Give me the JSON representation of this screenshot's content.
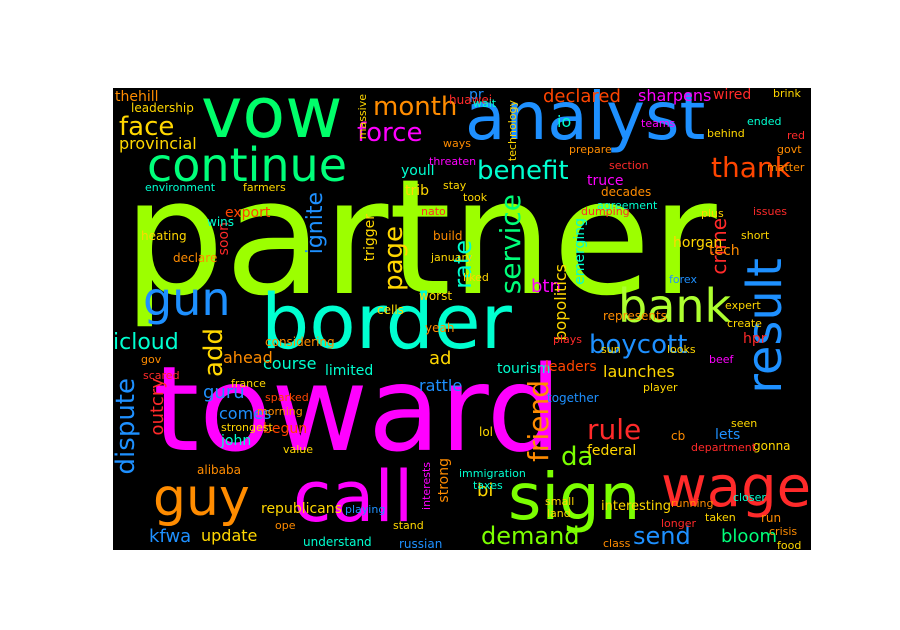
{
  "background_color": "#000000",
  "words": [
    {
      "id": "partner",
      "text": "partner",
      "color": "#9cff00"
    },
    {
      "id": "toward",
      "text": "toward",
      "color": "#ff00ff"
    },
    {
      "id": "border",
      "text": "border",
      "color": "#00ffd0"
    },
    {
      "id": "vow",
      "text": "vow",
      "color": "#00ff6a"
    },
    {
      "id": "analyst",
      "text": "analyst",
      "color": "#1e90ff"
    },
    {
      "id": "continue",
      "text": "continue",
      "color": "#00ff7a"
    },
    {
      "id": "call",
      "text": "call",
      "color": "#ff00ff"
    },
    {
      "id": "sign",
      "text": "sign",
      "color": "#7cff00"
    },
    {
      "id": "wage",
      "text": "wage",
      "color": "#ff2a2a"
    },
    {
      "id": "guy",
      "text": "guy",
      "color": "#ff8c00"
    },
    {
      "id": "bank",
      "text": "bank",
      "color": "#adff2f"
    },
    {
      "id": "result",
      "text": "result",
      "color": "#1e90ff"
    },
    {
      "id": "gun",
      "text": "gun",
      "color": "#1e90ff"
    },
    {
      "id": "month",
      "text": "month",
      "color": "#ff8c00"
    },
    {
      "id": "force",
      "text": "force",
      "color": "#ff00ff"
    },
    {
      "id": "face",
      "text": "face",
      "color": "#ffd700"
    },
    {
      "id": "thank",
      "text": "thank",
      "color": "#ff4500"
    },
    {
      "id": "benefit",
      "text": "benefit",
      "color": "#00ffd0"
    },
    {
      "id": "boycott",
      "text": "boycott",
      "color": "#1e90ff"
    },
    {
      "id": "service",
      "text": "service",
      "color": "#00ff7a"
    },
    {
      "id": "rule",
      "text": "rule",
      "color": "#ff2a2a"
    },
    {
      "id": "friend",
      "text": "friend",
      "color": "#ff8c00"
    },
    {
      "id": "demand",
      "text": "demand",
      "color": "#7cff00"
    },
    {
      "id": "send",
      "text": "send",
      "color": "#1e90ff"
    },
    {
      "id": "dispute",
      "text": "dispute",
      "color": "#1e90ff"
    },
    {
      "id": "add",
      "text": "add",
      "color": "#ffd700"
    },
    {
      "id": "page",
      "text": "page",
      "color": "#ffd700"
    },
    {
      "id": "rate",
      "text": "rate",
      "color": "#00ffd0"
    },
    {
      "id": "declared",
      "text": "declared",
      "color": "#ff4500"
    },
    {
      "id": "sharpens",
      "text": "sharpens",
      "color": "#ff00ff"
    },
    {
      "id": "icloud",
      "text": "icloud",
      "color": "#00ffd0"
    },
    {
      "id": "crime",
      "text": "crime",
      "color": "#ff2a2a"
    },
    {
      "id": "ignite",
      "text": "ignite",
      "color": "#1e90ff"
    },
    {
      "id": "bloom",
      "text": "bloom",
      "color": "#00ff7a"
    },
    {
      "id": "update",
      "text": "update",
      "color": "#ffd700"
    },
    {
      "id": "kfwa",
      "text": "kfwa",
      "color": "#1e90ff"
    },
    {
      "id": "da",
      "text": "da",
      "color": "#7cff00"
    },
    {
      "id": "course",
      "text": "course",
      "color": "#00ffd0"
    },
    {
      "id": "limited",
      "text": "limited",
      "color": "#00ffd0"
    },
    {
      "id": "btn",
      "text": "btn",
      "color": "#ff00ff"
    },
    {
      "id": "outcry",
      "text": "outcry",
      "color": "#ff2a2a"
    },
    {
      "id": "republicans",
      "text": "republicans",
      "color": "#ffd700"
    },
    {
      "id": "horgan",
      "text": "horgan",
      "color": "#ffd700"
    },
    {
      "id": "tourism",
      "text": "tourism",
      "color": "#00ffd0"
    },
    {
      "id": "launches",
      "text": "launches",
      "color": "#ffd700"
    },
    {
      "id": "federal",
      "text": "federal",
      "color": "#ffd700"
    },
    {
      "id": "rattle",
      "text": "rattle",
      "color": "#1e90ff"
    },
    {
      "id": "ad",
      "text": "ad",
      "color": "#ffd700"
    },
    {
      "id": "leaders",
      "text": "leaders",
      "color": "#ff4500"
    },
    {
      "id": "interesting",
      "text": "interesting",
      "color": "#ffd700"
    },
    {
      "id": "john",
      "text": "john",
      "color": "#00ffd0"
    },
    {
      "id": "guru",
      "text": "guru",
      "color": "#1e90ff"
    },
    {
      "id": "comes",
      "text": "comes",
      "color": "#1e90ff"
    },
    {
      "id": "begun",
      "text": "begun",
      "color": "#ff4500"
    },
    {
      "id": "provincial",
      "text": "provincial",
      "color": "#ffd700"
    },
    {
      "id": "trib",
      "text": "trib",
      "color": "#ffd700"
    },
    {
      "id": "youll",
      "text": "youll",
      "color": "#00ffd0"
    },
    {
      "id": "export",
      "text": "export",
      "color": "#ff4500"
    },
    {
      "id": "emerging",
      "text": "emerging",
      "color": "#00ffd0"
    },
    {
      "id": "represents",
      "text": "represents",
      "color": "#ff8c00"
    },
    {
      "id": "bopolitics",
      "text": "bopolitics",
      "color": "#ffd700"
    },
    {
      "id": "bi",
      "text": "bi",
      "color": "#ffd700"
    },
    {
      "id": "strong",
      "text": "strong",
      "color": "#ff8c00"
    },
    {
      "id": "together",
      "text": "together",
      "color": "#1e90ff"
    },
    {
      "id": "trigger",
      "text": "trigger",
      "color": "#ffd700"
    },
    {
      "id": "cells",
      "text": "cells",
      "color": "#ffd700"
    },
    {
      "id": "yeah",
      "text": "yeah",
      "color": "#ff8c00"
    },
    {
      "id": "lol",
      "text": "lol",
      "color": "#ffd700"
    },
    {
      "id": "considering",
      "text": "considering",
      "color": "#ff8c00"
    },
    {
      "id": "ahead",
      "text": "ahead",
      "color": "#ff8c00"
    },
    {
      "id": "thehill",
      "text": "thehill",
      "color": "#ff8c00"
    },
    {
      "id": "leadership",
      "text": "leadership",
      "color": "#ffd700"
    },
    {
      "id": "pr",
      "text": "pr",
      "color": "#1e90ff"
    },
    {
      "id": "io",
      "text": "io",
      "color": "#00ffd0"
    },
    {
      "id": "wired",
      "text": "wired",
      "color": "#ff2a2a"
    },
    {
      "id": "truce",
      "text": "truce",
      "color": "#ff00ff"
    },
    {
      "id": "understand",
      "text": "understand",
      "color": "#00ffd0"
    },
    {
      "id": "ope",
      "text": "ope",
      "color": "#ff8c00"
    },
    {
      "id": "gov",
      "text": "gov",
      "color": "#ff8c00"
    },
    {
      "id": "sun",
      "text": "sun",
      "color": "#ffd700"
    },
    {
      "id": "hpr",
      "text": "hpr",
      "color": "#ff2a2a"
    },
    {
      "id": "lets",
      "text": "lets",
      "color": "#1e90ff"
    },
    {
      "id": "gonna",
      "text": "gonna",
      "color": "#ffd700"
    },
    {
      "id": "soon",
      "text": "soon",
      "color": "#ff2a2a"
    },
    {
      "id": "tech",
      "text": "tech",
      "color": "#ff8c00"
    },
    {
      "id": "wins",
      "text": "wins",
      "color": "#00ffd0"
    },
    {
      "id": "looks",
      "text": "looks",
      "color": "#ffd700"
    },
    {
      "id": "cbc",
      "text": "cb",
      "color": "#ff8c00"
    },
    {
      "id": "immigration",
      "text": "immigration",
      "color": "#00ffd0"
    },
    {
      "id": "plays",
      "text": "plays",
      "color": "#ff2a2a"
    },
    {
      "id": "forex",
      "text": "forex",
      "color": "#1e90ff"
    },
    {
      "id": "running",
      "text": "running",
      "color": "#ff8c00"
    },
    {
      "id": "create",
      "text": "create",
      "color": "#ffd700"
    },
    {
      "id": "expert",
      "text": "expert",
      "color": "#ffd700"
    },
    {
      "id": "decades",
      "text": "decades",
      "color": "#ff8c00"
    },
    {
      "id": "worst",
      "text": "worst",
      "color": "#ffd700"
    },
    {
      "id": "technology",
      "text": "technology",
      "color": "#ffd700"
    },
    {
      "id": "huawei",
      "text": "huawei",
      "color": "#ff2a2a"
    },
    {
      "id": "massive",
      "text": "massive",
      "color": "#ffd700"
    },
    {
      "id": "threaten",
      "text": "threaten",
      "color": "#ff00ff"
    },
    {
      "id": "environment",
      "text": "environment",
      "color": "#00ffd0"
    },
    {
      "id": "farmers",
      "text": "farmers",
      "color": "#ffd700"
    },
    {
      "id": "heating",
      "text": "heating",
      "color": "#ffd700"
    },
    {
      "id": "declare",
      "text": "declare",
      "color": "#ff8c00"
    },
    {
      "id": "morning",
      "text": "morning",
      "color": "#ff8c00"
    },
    {
      "id": "strongest",
      "text": "strongest",
      "color": "#ffd700"
    },
    {
      "id": "value",
      "text": "value",
      "color": "#ffd700"
    },
    {
      "id": "alibaba",
      "text": "alibaba",
      "color": "#ff8c00"
    },
    {
      "id": "taxes",
      "text": "taxes",
      "color": "#00ffd0"
    },
    {
      "id": "small",
      "text": "small",
      "color": "#ffd700"
    },
    {
      "id": "playing",
      "text": "playing",
      "color": "#1e90ff"
    },
    {
      "id": "stand",
      "text": "stand",
      "color": "#ffd700"
    },
    {
      "id": "russian",
      "text": "russian",
      "color": "#1e90ff"
    },
    {
      "id": "class",
      "text": "class",
      "color": "#ff8c00"
    },
    {
      "id": "interests",
      "text": "interests",
      "color": "#ff00ff"
    },
    {
      "id": "land",
      "text": "land",
      "color": "#ffd700"
    },
    {
      "id": "france",
      "text": "france",
      "color": "#ffd700"
    },
    {
      "id": "scared",
      "text": "scared",
      "color": "#ff2a2a"
    },
    {
      "id": "sparked",
      "text": "sparked",
      "color": "#ff4500"
    },
    {
      "id": "player",
      "text": "player",
      "color": "#ffd700"
    },
    {
      "id": "agreement",
      "text": "agreement",
      "color": "#00ffd0"
    },
    {
      "id": "prepare",
      "text": "prepare",
      "color": "#ff8c00"
    },
    {
      "id": "section",
      "text": "section",
      "color": "#ff2a2a"
    },
    {
      "id": "built",
      "text": "build",
      "color": "#ff8c00"
    },
    {
      "id": "january",
      "text": "january",
      "color": "#ffd700"
    },
    {
      "id": "liked",
      "text": "liked",
      "color": "#ffd700"
    },
    {
      "id": "crisis",
      "text": "crisis",
      "color": "#ff8c00"
    },
    {
      "id": "food",
      "text": "food",
      "color": "#ffd700"
    },
    {
      "id": "run",
      "text": "run",
      "color": "#ff8c00"
    },
    {
      "id": "taken",
      "text": "taken",
      "color": "#ffd700"
    },
    {
      "id": "longer",
      "text": "longer",
      "color": "#ff2a2a"
    },
    {
      "id": "closer",
      "text": "closer",
      "color": "#00ffd0"
    },
    {
      "id": "beef",
      "text": "beef",
      "color": "#ff00ff"
    },
    {
      "id": "issues",
      "text": "issues",
      "color": "#ff2a2a"
    },
    {
      "id": "matter",
      "text": "matter",
      "color": "#ff8c00"
    },
    {
      "id": "red",
      "text": "red",
      "color": "#ff2a2a"
    },
    {
      "id": "ended",
      "text": "ended",
      "color": "#00ffd0"
    },
    {
      "id": "behind",
      "text": "behind",
      "color": "#ffd700"
    },
    {
      "id": "teams",
      "text": "teams",
      "color": "#ff00ff"
    },
    {
      "id": "wait",
      "text": "wait",
      "color": "#00ffd0"
    },
    {
      "id": "nato",
      "text": "nato",
      "color": "#ff2a2a"
    },
    {
      "id": "stay",
      "text": "stay",
      "color": "#ffd700"
    },
    {
      "id": "took",
      "text": "took",
      "color": "#ffd700"
    },
    {
      "id": "department",
      "text": "department",
      "color": "#ff2a2a"
    },
    {
      "id": "seen",
      "text": "seen",
      "color": "#ffd700"
    },
    {
      "id": "short",
      "text": "short",
      "color": "#ffd700"
    },
    {
      "id": "plus",
      "text": "plus",
      "color": "#ffd700"
    },
    {
      "id": "dumping",
      "text": "dumping",
      "color": "#ff2a2a"
    },
    {
      "id": "ways",
      "text": "ways",
      "color": "#ff8c00"
    },
    {
      "id": "brink",
      "text": "brink",
      "color": "#ffd700"
    },
    {
      "id": "govt",
      "text": "govt",
      "color": "#ff8c00"
    }
  ]
}
